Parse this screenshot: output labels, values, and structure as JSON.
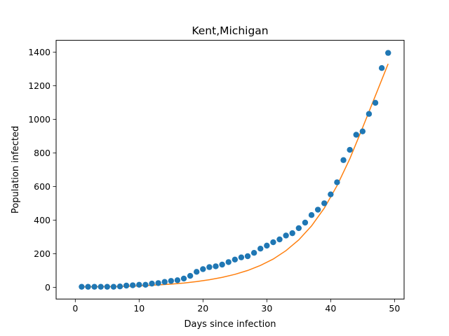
{
  "chart_data": {
    "type": "scatter",
    "title": "Kent,Michigan",
    "xlabel": "Days since infection",
    "ylabel": "Population infected",
    "xlim": [
      -3.0,
      51.5
    ],
    "ylim": [
      -70,
      1470
    ],
    "xticks": [
      0,
      10,
      20,
      30,
      40,
      50
    ],
    "yticks": [
      0,
      200,
      400,
      600,
      800,
      1000,
      1200,
      1400
    ],
    "grid": false,
    "legend": "none",
    "series": [
      {
        "kind": "scatter",
        "color": "#1f77b4",
        "x": [
          1,
          2,
          3,
          4,
          5,
          6,
          7,
          8,
          9,
          10,
          11,
          12,
          13,
          14,
          15,
          16,
          17,
          18,
          19,
          20,
          21,
          22,
          23,
          24,
          25,
          26,
          27,
          28,
          29,
          30,
          31,
          32,
          33,
          34,
          35,
          36,
          37,
          38,
          39,
          40,
          41,
          42,
          43,
          44,
          45,
          46,
          47,
          48,
          49
        ],
        "y": [
          3,
          3,
          3,
          3,
          3,
          3,
          5,
          10,
          12,
          15,
          15,
          22,
          25,
          32,
          38,
          42,
          52,
          68,
          92,
          108,
          120,
          125,
          135,
          150,
          165,
          178,
          185,
          205,
          230,
          248,
          268,
          285,
          308,
          322,
          352,
          385,
          430,
          462,
          500,
          553,
          625,
          757,
          818,
          908,
          928,
          1032,
          1098,
          1305,
          1395
        ]
      },
      {
        "kind": "line",
        "color": "#ff7f0e",
        "x": [
          1,
          3,
          5,
          7,
          9,
          11,
          13,
          15,
          17,
          19,
          21,
          23,
          25,
          27,
          29,
          31,
          33,
          35,
          37,
          39,
          41,
          43,
          45,
          47,
          49
        ],
        "y": [
          2,
          3,
          4,
          5,
          7,
          10,
          14,
          19,
          25,
          34,
          45,
          59,
          77,
          100,
          130,
          168,
          218,
          282,
          365,
          471,
          605,
          765,
          950,
          1140,
          1330
        ]
      }
    ]
  }
}
